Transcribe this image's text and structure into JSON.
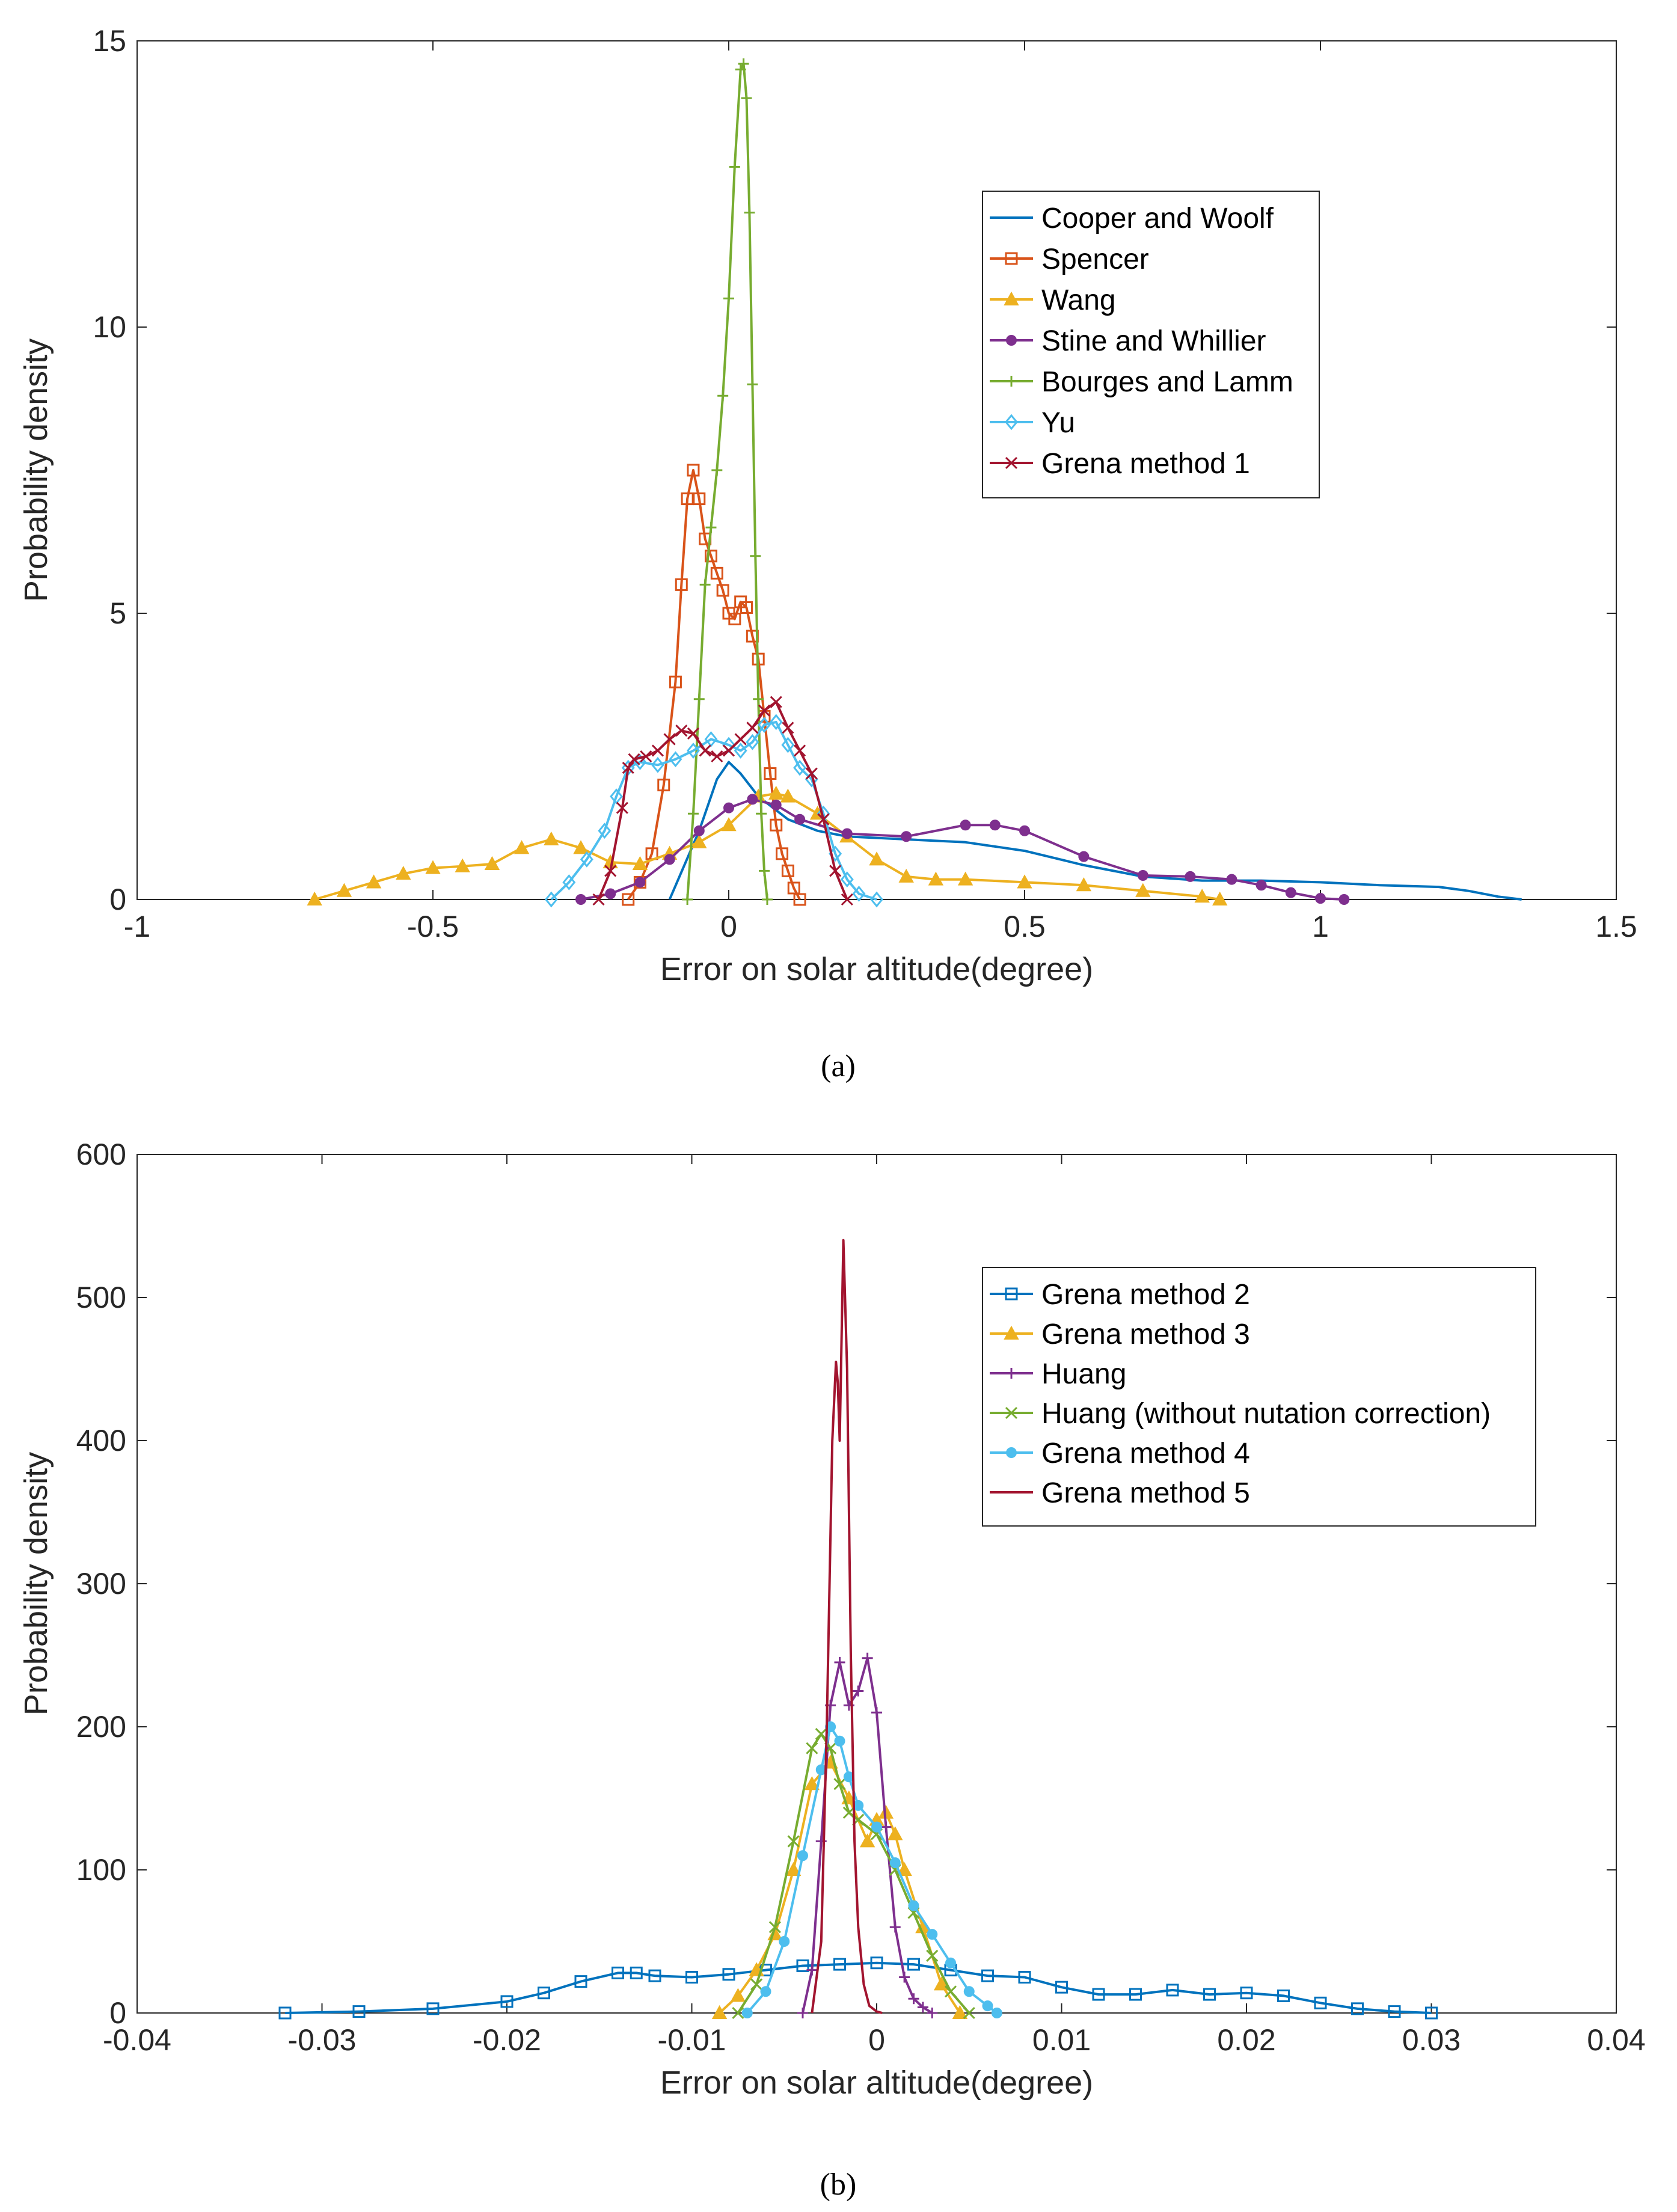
{
  "chart_data": [
    {
      "type": "line",
      "panel_label": "a",
      "xlabel": "Error on solar altitude(degree)",
      "ylabel": "Probability density",
      "xlim": [
        -1,
        1.5
      ],
      "ylim": [
        0,
        15
      ],
      "xticks": [
        -1,
        -0.5,
        0,
        0.5,
        1,
        1.5
      ],
      "xtick_labels": [
        "-1",
        "-0.5",
        "0",
        "0.5",
        "1",
        "1.5"
      ],
      "yticks": [
        0,
        5,
        10,
        15
      ],
      "ytick_labels": [
        "0",
        "5",
        "10",
        "15"
      ],
      "legend_position": "top-right",
      "series": [
        {
          "name": "Cooper and Woolf",
          "color": "#0072BD",
          "marker": "none",
          "x": [
            -0.1,
            -0.05,
            -0.02,
            0.0,
            0.02,
            0.05,
            0.1,
            0.15,
            0.2,
            0.3,
            0.4,
            0.5,
            0.6,
            0.7,
            0.8,
            0.9,
            1.0,
            1.1,
            1.2,
            1.25,
            1.3,
            1.34
          ],
          "y": [
            0.0,
            1.2,
            2.1,
            2.4,
            2.2,
            1.8,
            1.4,
            1.2,
            1.1,
            1.05,
            1.0,
            0.85,
            0.6,
            0.4,
            0.33,
            0.33,
            0.3,
            0.25,
            0.22,
            0.15,
            0.05,
            0.0
          ]
        },
        {
          "name": "Spencer",
          "color": "#D95319",
          "marker": "square",
          "x": [
            -0.17,
            -0.15,
            -0.13,
            -0.11,
            -0.09,
            -0.08,
            -0.07,
            -0.06,
            -0.05,
            -0.04,
            -0.03,
            -0.02,
            -0.01,
            0.0,
            0.01,
            0.02,
            0.03,
            0.04,
            0.05,
            0.06,
            0.07,
            0.08,
            0.09,
            0.1,
            0.11,
            0.12
          ],
          "y": [
            0.0,
            0.3,
            0.8,
            2.0,
            3.8,
            5.5,
            7.0,
            7.5,
            7.0,
            6.3,
            6.0,
            5.7,
            5.4,
            5.0,
            4.9,
            5.2,
            5.1,
            4.6,
            4.2,
            3.2,
            2.2,
            1.3,
            0.8,
            0.5,
            0.2,
            0.0
          ]
        },
        {
          "name": "Wang",
          "color": "#EDB120",
          "marker": "triangle",
          "x": [
            -0.7,
            -0.65,
            -0.6,
            -0.55,
            -0.5,
            -0.45,
            -0.4,
            -0.35,
            -0.3,
            -0.25,
            -0.2,
            -0.15,
            -0.1,
            -0.05,
            0.0,
            0.05,
            0.08,
            0.1,
            0.15,
            0.2,
            0.25,
            0.3,
            0.35,
            0.4,
            0.5,
            0.6,
            0.7,
            0.8,
            0.83
          ],
          "y": [
            0.0,
            0.15,
            0.3,
            0.45,
            0.55,
            0.58,
            0.62,
            0.9,
            1.05,
            0.9,
            0.65,
            0.62,
            0.8,
            1.0,
            1.3,
            1.8,
            1.85,
            1.8,
            1.5,
            1.1,
            0.7,
            0.4,
            0.35,
            0.35,
            0.3,
            0.25,
            0.15,
            0.05,
            0.0
          ]
        },
        {
          "name": "Stine and Whillier",
          "color": "#7E2F8E",
          "marker": "circle",
          "x": [
            -0.25,
            -0.2,
            -0.15,
            -0.1,
            -0.05,
            0.0,
            0.04,
            0.08,
            0.12,
            0.2,
            0.3,
            0.4,
            0.45,
            0.5,
            0.6,
            0.7,
            0.78,
            0.85,
            0.9,
            0.95,
            1.0,
            1.04
          ],
          "y": [
            0.0,
            0.1,
            0.3,
            0.7,
            1.2,
            1.6,
            1.75,
            1.65,
            1.4,
            1.15,
            1.1,
            1.3,
            1.3,
            1.2,
            0.75,
            0.42,
            0.4,
            0.35,
            0.25,
            0.12,
            0.02,
            0.0
          ]
        },
        {
          "name": "Bourges and Lamm",
          "color": "#77AC30",
          "marker": "plus",
          "x": [
            -0.07,
            -0.06,
            -0.05,
            -0.04,
            -0.03,
            -0.02,
            -0.01,
            0.0,
            0.01,
            0.02,
            0.025,
            0.03,
            0.035,
            0.04,
            0.045,
            0.05,
            0.055,
            0.06,
            0.065
          ],
          "y": [
            0.0,
            1.5,
            3.5,
            5.5,
            6.5,
            7.5,
            8.8,
            10.5,
            12.8,
            14.5,
            14.6,
            14.0,
            12.0,
            9.0,
            6.0,
            3.5,
            1.5,
            0.5,
            0.0
          ]
        },
        {
          "name": "Yu",
          "color": "#4DBEEE",
          "marker": "diamond",
          "x": [
            -0.3,
            -0.27,
            -0.24,
            -0.21,
            -0.19,
            -0.17,
            -0.15,
            -0.12,
            -0.09,
            -0.06,
            -0.03,
            0.0,
            0.02,
            0.04,
            0.06,
            0.08,
            0.1,
            0.12,
            0.14,
            0.16,
            0.18,
            0.2,
            0.22,
            0.25
          ],
          "y": [
            0.0,
            0.3,
            0.7,
            1.2,
            1.8,
            2.3,
            2.4,
            2.35,
            2.45,
            2.6,
            2.8,
            2.7,
            2.6,
            2.75,
            3.05,
            3.1,
            2.7,
            2.3,
            2.1,
            1.5,
            0.8,
            0.35,
            0.1,
            0.0
          ]
        },
        {
          "name": "Grena method 1",
          "color": "#A2142F",
          "marker": "x",
          "x": [
            -0.22,
            -0.2,
            -0.18,
            -0.17,
            -0.16,
            -0.14,
            -0.12,
            -0.1,
            -0.08,
            -0.06,
            -0.04,
            -0.02,
            0.0,
            0.02,
            0.04,
            0.06,
            0.08,
            0.1,
            0.12,
            0.14,
            0.16,
            0.18,
            0.2
          ],
          "y": [
            0.0,
            0.5,
            1.6,
            2.3,
            2.45,
            2.5,
            2.6,
            2.8,
            2.95,
            2.9,
            2.6,
            2.5,
            2.6,
            2.8,
            3.0,
            3.3,
            3.45,
            3.0,
            2.6,
            2.2,
            1.4,
            0.5,
            0.0
          ]
        }
      ]
    },
    {
      "type": "line",
      "panel_label": "b",
      "xlabel": "Error on solar altitude(degree)",
      "ylabel": "Probability density",
      "xlim": [
        -0.04,
        0.04
      ],
      "ylim": [
        0,
        600
      ],
      "xticks": [
        -0.04,
        -0.03,
        -0.02,
        -0.01,
        0,
        0.01,
        0.02,
        0.03,
        0.04
      ],
      "xtick_labels": [
        "-0.04",
        "-0.03",
        "-0.02",
        "-0.01",
        "0",
        "0.01",
        "0.02",
        "0.03",
        "0.04"
      ],
      "yticks": [
        0,
        100,
        200,
        300,
        400,
        500,
        600
      ],
      "ytick_labels": [
        "0",
        "100",
        "200",
        "300",
        "400",
        "500",
        "600"
      ],
      "legend_position": "top-right",
      "series": [
        {
          "name": "Grena method 2",
          "color": "#0072BD",
          "marker": "square",
          "x": [
            -0.032,
            -0.028,
            -0.024,
            -0.02,
            -0.018,
            -0.016,
            -0.014,
            -0.013,
            -0.012,
            -0.01,
            -0.008,
            -0.006,
            -0.004,
            -0.002,
            0.0,
            0.002,
            0.004,
            0.006,
            0.008,
            0.01,
            0.012,
            0.014,
            0.016,
            0.018,
            0.02,
            0.022,
            0.024,
            0.026,
            0.028,
            0.03
          ],
          "y": [
            0,
            1,
            3,
            8,
            14,
            22,
            28,
            28,
            26,
            25,
            27,
            30,
            33,
            34,
            35,
            34,
            30,
            26,
            25,
            18,
            13,
            13,
            16,
            13,
            14,
            12,
            7,
            3,
            1,
            0
          ]
        },
        {
          "name": "Grena method 3",
          "color": "#EDB120",
          "marker": "triangle",
          "x": [
            -0.0085,
            -0.0075,
            -0.0065,
            -0.0055,
            -0.0045,
            -0.0035,
            -0.0025,
            -0.0015,
            -0.0005,
            0.0,
            0.0005,
            0.001,
            0.0015,
            0.0025,
            0.0035,
            0.0045
          ],
          "y": [
            0,
            12,
            30,
            55,
            100,
            160,
            175,
            150,
            120,
            135,
            140,
            125,
            100,
            60,
            20,
            0
          ]
        },
        {
          "name": "Huang",
          "color": "#7E2F8E",
          "marker": "plus",
          "x": [
            -0.004,
            -0.0035,
            -0.003,
            -0.0025,
            -0.002,
            -0.0015,
            -0.001,
            -0.0005,
            0.0,
            0.0005,
            0.001,
            0.0015,
            0.002,
            0.0025,
            0.003
          ],
          "y": [
            0,
            30,
            120,
            215,
            245,
            215,
            225,
            248,
            210,
            130,
            60,
            25,
            10,
            4,
            0
          ]
        },
        {
          "name": "Huang (without nutation correction)",
          "color": "#77AC30",
          "marker": "x",
          "x": [
            -0.0075,
            -0.0065,
            -0.0055,
            -0.0045,
            -0.0035,
            -0.003,
            -0.0025,
            -0.002,
            -0.0015,
            -0.001,
            0.0,
            0.001,
            0.002,
            0.003,
            0.004,
            0.005
          ],
          "y": [
            0,
            20,
            60,
            120,
            185,
            195,
            185,
            160,
            140,
            135,
            125,
            100,
            70,
            40,
            15,
            0
          ]
        },
        {
          "name": "Grena method 4",
          "color": "#4DBEEE",
          "marker": "circle",
          "x": [
            -0.007,
            -0.006,
            -0.005,
            -0.004,
            -0.003,
            -0.0025,
            -0.002,
            -0.0015,
            -0.001,
            0.0,
            0.001,
            0.002,
            0.003,
            0.004,
            0.005,
            0.006,
            0.0065
          ],
          "y": [
            0,
            15,
            50,
            110,
            170,
            200,
            190,
            165,
            145,
            130,
            105,
            75,
            55,
            35,
            15,
            5,
            0
          ]
        },
        {
          "name": "Grena method 5",
          "color": "#A2142F",
          "marker": "none",
          "x": [
            -0.0035,
            -0.003,
            -0.0027,
            -0.0024,
            -0.0022,
            -0.0021,
            -0.002,
            -0.0018,
            -0.0016,
            -0.0014,
            -0.0012,
            -0.001,
            -0.0007,
            -0.0004,
            0.0,
            0.0003
          ],
          "y": [
            0,
            50,
            200,
            400,
            455,
            440,
            400,
            540,
            450,
            250,
            120,
            60,
            20,
            5,
            1,
            0
          ]
        }
      ]
    }
  ],
  "captions": {
    "a": "(a)",
    "b": "(b)"
  }
}
